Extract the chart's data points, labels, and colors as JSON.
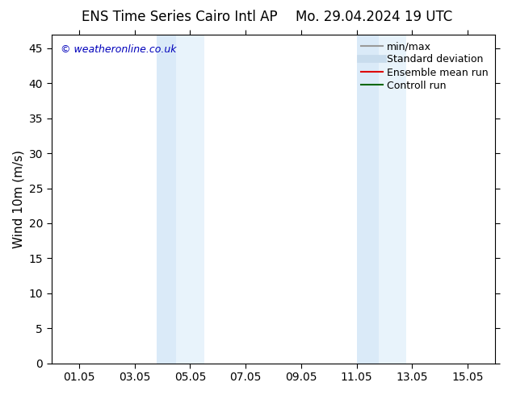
{
  "title_left": "ENS Time Series Cairo Intl AP",
  "title_right": "Mo. 29.04.2024 19 UTC",
  "ylabel": "Wind 10m (m/s)",
  "xlim": [
    0.0,
    16.0
  ],
  "ylim": [
    0,
    47
  ],
  "yticks": [
    0,
    5,
    10,
    15,
    20,
    25,
    30,
    35,
    40,
    45
  ],
  "xtick_labels": [
    "01.05",
    "03.05",
    "05.05",
    "07.05",
    "09.05",
    "11.05",
    "13.05",
    "15.05"
  ],
  "xtick_positions": [
    1,
    3,
    5,
    7,
    9,
    11,
    13,
    15
  ],
  "shaded_bands": [
    [
      3.8,
      4.5
    ],
    [
      4.5,
      5.5
    ],
    [
      11.0,
      11.8
    ],
    [
      11.8,
      12.8
    ]
  ],
  "shade_color": "#daeaf8",
  "shade_color2": "#e8f3fb",
  "background_color": "#ffffff",
  "plot_bg_color": "#ffffff",
  "watermark_text": "© weatheronline.co.uk",
  "watermark_color": "#0000bb",
  "legend_items": [
    {
      "label": "min/max",
      "color": "#999999",
      "lw": 1.5
    },
    {
      "label": "Standard deviation",
      "color": "#c8dced",
      "lw": 7
    },
    {
      "label": "Ensemble mean run",
      "color": "#dd0000",
      "lw": 1.5
    },
    {
      "label": "Controll run",
      "color": "#006600",
      "lw": 1.5
    }
  ],
  "title_fontsize": 12,
  "ylabel_fontsize": 11,
  "tick_fontsize": 10,
  "legend_fontsize": 9,
  "watermark_fontsize": 9
}
